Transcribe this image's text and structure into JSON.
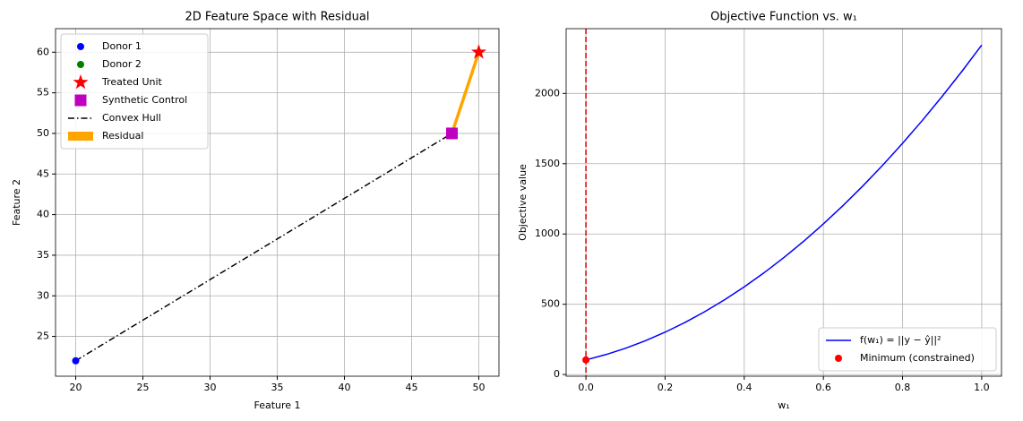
{
  "chart_data": [
    {
      "type": "scatter",
      "title": "2D Feature Space with Residual",
      "xlabel": "Feature 1",
      "ylabel": "Feature 2",
      "xlim": [
        18.5,
        51.5
      ],
      "ylim": [
        20.1,
        62.9
      ],
      "xticks": [
        20,
        25,
        30,
        35,
        40,
        45,
        50
      ],
      "yticks": [
        25,
        30,
        35,
        40,
        45,
        50,
        55,
        60
      ],
      "grid": true,
      "legend": "upper left",
      "series": [
        {
          "name": "Donor 1",
          "color": "#0000ff",
          "marker": "o",
          "x": [
            20
          ],
          "values": [
            22
          ]
        },
        {
          "name": "Donor 2",
          "color": "#008000",
          "marker": "o",
          "x": [
            48
          ],
          "values": [
            50
          ]
        },
        {
          "name": "Treated Unit",
          "color": "#ff0000",
          "marker": "*",
          "x": [
            50
          ],
          "values": [
            60
          ]
        },
        {
          "name": "Synthetic Control",
          "color": "#bf00bf",
          "marker": "s",
          "x": [
            48
          ],
          "values": [
            50
          ]
        },
        {
          "name": "Convex Hull",
          "color": "#000000",
          "linestyle": "-.",
          "linewidth": 1.5,
          "x": [
            20,
            48
          ],
          "values": [
            22,
            50
          ]
        },
        {
          "name": "Residual",
          "color": "#ffa500",
          "linestyle": "-",
          "linewidth": 3.5,
          "x": [
            48,
            50
          ],
          "values": [
            50,
            60
          ]
        }
      ]
    },
    {
      "type": "line",
      "title": "Objective Function vs. w₁",
      "xlabel": "w₁",
      "ylabel": "Objective value",
      "xlim": [
        -0.05,
        1.05
      ],
      "ylim": [
        -12,
        2461
      ],
      "xticks": [
        {
          "value": 0,
          "label": "0.0"
        },
        0.2,
        0.4,
        0.6,
        0.8,
        {
          "value": 1,
          "label": "1.0"
        }
      ],
      "yticks": [
        0,
        500,
        1000,
        1500,
        2000
      ],
      "grid": true,
      "legend": "lower right",
      "vline": {
        "x": 0,
        "color": "#dd0000",
        "linestyle": "--"
      },
      "series": [
        {
          "name": "f(w₁) = ||y − ŷ||²",
          "color": "#0000ff",
          "linestyle": "-",
          "linewidth": 1.5,
          "x": [
            0,
            0.05,
            0.1,
            0.15,
            0.2,
            0.25,
            0.3,
            0.35,
            0.4,
            0.45,
            0.5,
            0.55,
            0.6,
            0.65,
            0.7,
            0.75,
            0.8,
            0.85,
            0.9,
            0.95,
            1
          ],
          "values": [
            104,
            141.52,
            186.88,
            240.08,
            301.12,
            370,
            446.72,
            531.28,
            623.68,
            723.92,
            832,
            947.92,
            1071.68,
            1203.28,
            1342.72,
            1490,
            1645.12,
            1808.08,
            1978.88,
            2157.52,
            2344
          ]
        },
        {
          "name": "Minimum (constrained)",
          "color": "#ff0000",
          "marker": "o",
          "x": [
            0
          ],
          "values": [
            104
          ]
        }
      ]
    }
  ]
}
